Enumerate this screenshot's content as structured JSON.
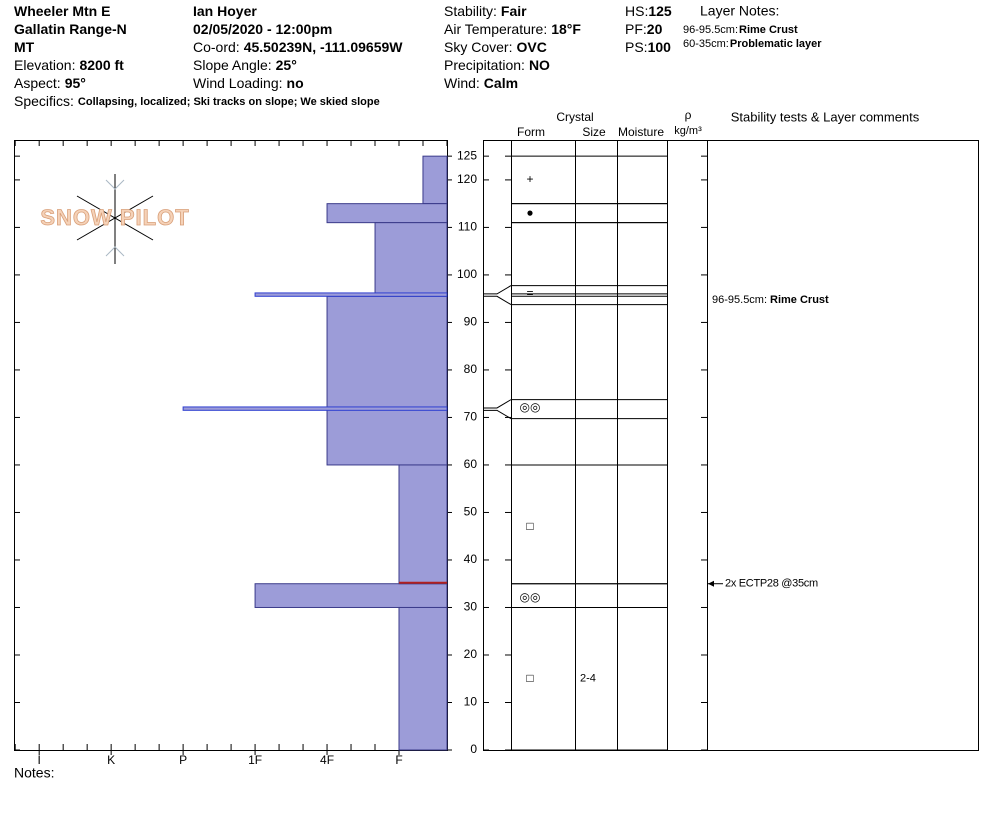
{
  "header": {
    "col1": [
      {
        "value": "Wheeler Mtn E"
      },
      {
        "value": "Gallatin Range-N"
      },
      {
        "value": "MT"
      },
      {
        "label": "Elevation:",
        "value": "8200 ft"
      },
      {
        "label": "Aspect:",
        "value": "95°"
      }
    ],
    "col2": [
      {
        "value": "Ian Hoyer"
      },
      {
        "value": "02/05/2020 - 12:00pm"
      },
      {
        "label": "Co-ord:",
        "value": "45.50239N, -111.09659W"
      },
      {
        "label": "Slope Angle:",
        "value": "25°"
      },
      {
        "label": "Wind Loading:",
        "value": "no"
      }
    ],
    "col3": [
      {
        "label": "Stability:",
        "value": "Fair"
      },
      {
        "label": "Air Temperature:",
        "value": "18°F"
      },
      {
        "label": "Sky Cover:",
        "value": "OVC"
      },
      {
        "label": "Precipitation:",
        "value": "NO"
      },
      {
        "label": "Wind:",
        "value": "Calm"
      }
    ],
    "col4": [
      {
        "label": "HS:",
        "value": "125"
      },
      {
        "label": "PF:",
        "value": "20"
      },
      {
        "label": "PS:",
        "value": "100"
      }
    ],
    "layer_notes_title": "Layer Notes:",
    "layer_notes": [
      {
        "label": "96-95.5cm:",
        "value": "Rime Crust"
      },
      {
        "label": "60-35cm:",
        "value": "Problematic layer"
      }
    ],
    "specifics": {
      "label": "Specifics:",
      "value": "Collapsing, localized; Ski tracks on slope; We skied slope"
    }
  },
  "logo": "SNOW PILOT",
  "notes_label": "Notes:",
  "columns": {
    "crystal": "Crystal",
    "form": "Form",
    "size": "Size",
    "moisture": "Moisture",
    "density": "ρ",
    "density_unit": "kg/m³",
    "comments": "Stability tests & Layer comments"
  },
  "chart_data": {
    "type": "snow-profile",
    "ylim": [
      0,
      128.4
    ],
    "yticks": [
      0,
      10,
      20,
      30,
      40,
      50,
      60,
      70,
      80,
      90,
      100,
      110,
      120,
      125
    ],
    "xlim": [
      6.35,
      0.333
    ],
    "xticks": [
      {
        "value": 6,
        "label": "I"
      },
      {
        "value": 5,
        "label": "K"
      },
      {
        "value": 4,
        "label": "P"
      },
      {
        "value": 3,
        "label": "1F"
      },
      {
        "value": 2,
        "label": "4F"
      },
      {
        "value": 1,
        "label": "F"
      }
    ],
    "color": "#9c9cd8",
    "layers": {
      "top": [
        125,
        115,
        111,
        95.5,
        35,
        30,
        96,
        72,
        60
      ],
      "bottom": [
        115,
        111,
        96,
        60,
        30,
        0,
        95.5,
        71.5,
        35
      ],
      "hardness": [
        0.667,
        2,
        1.333,
        2,
        3,
        1,
        3,
        4,
        1
      ]
    },
    "grains": {
      "height": [
        120,
        113,
        96,
        72,
        47,
        32,
        15
      ],
      "form": [
        "+",
        "●",
        "=",
        "◎◎",
        "□",
        "◎◎",
        "□"
      ],
      "size": [
        null,
        null,
        null,
        null,
        null,
        null,
        "2-4"
      ]
    },
    "comments": [
      {
        "label": "96-95.5cm:",
        "value": "Rime Crust"
      }
    ],
    "tests": [
      {
        "depth": 35,
        "label": "2x ECTP28 @35cm"
      }
    ]
  }
}
